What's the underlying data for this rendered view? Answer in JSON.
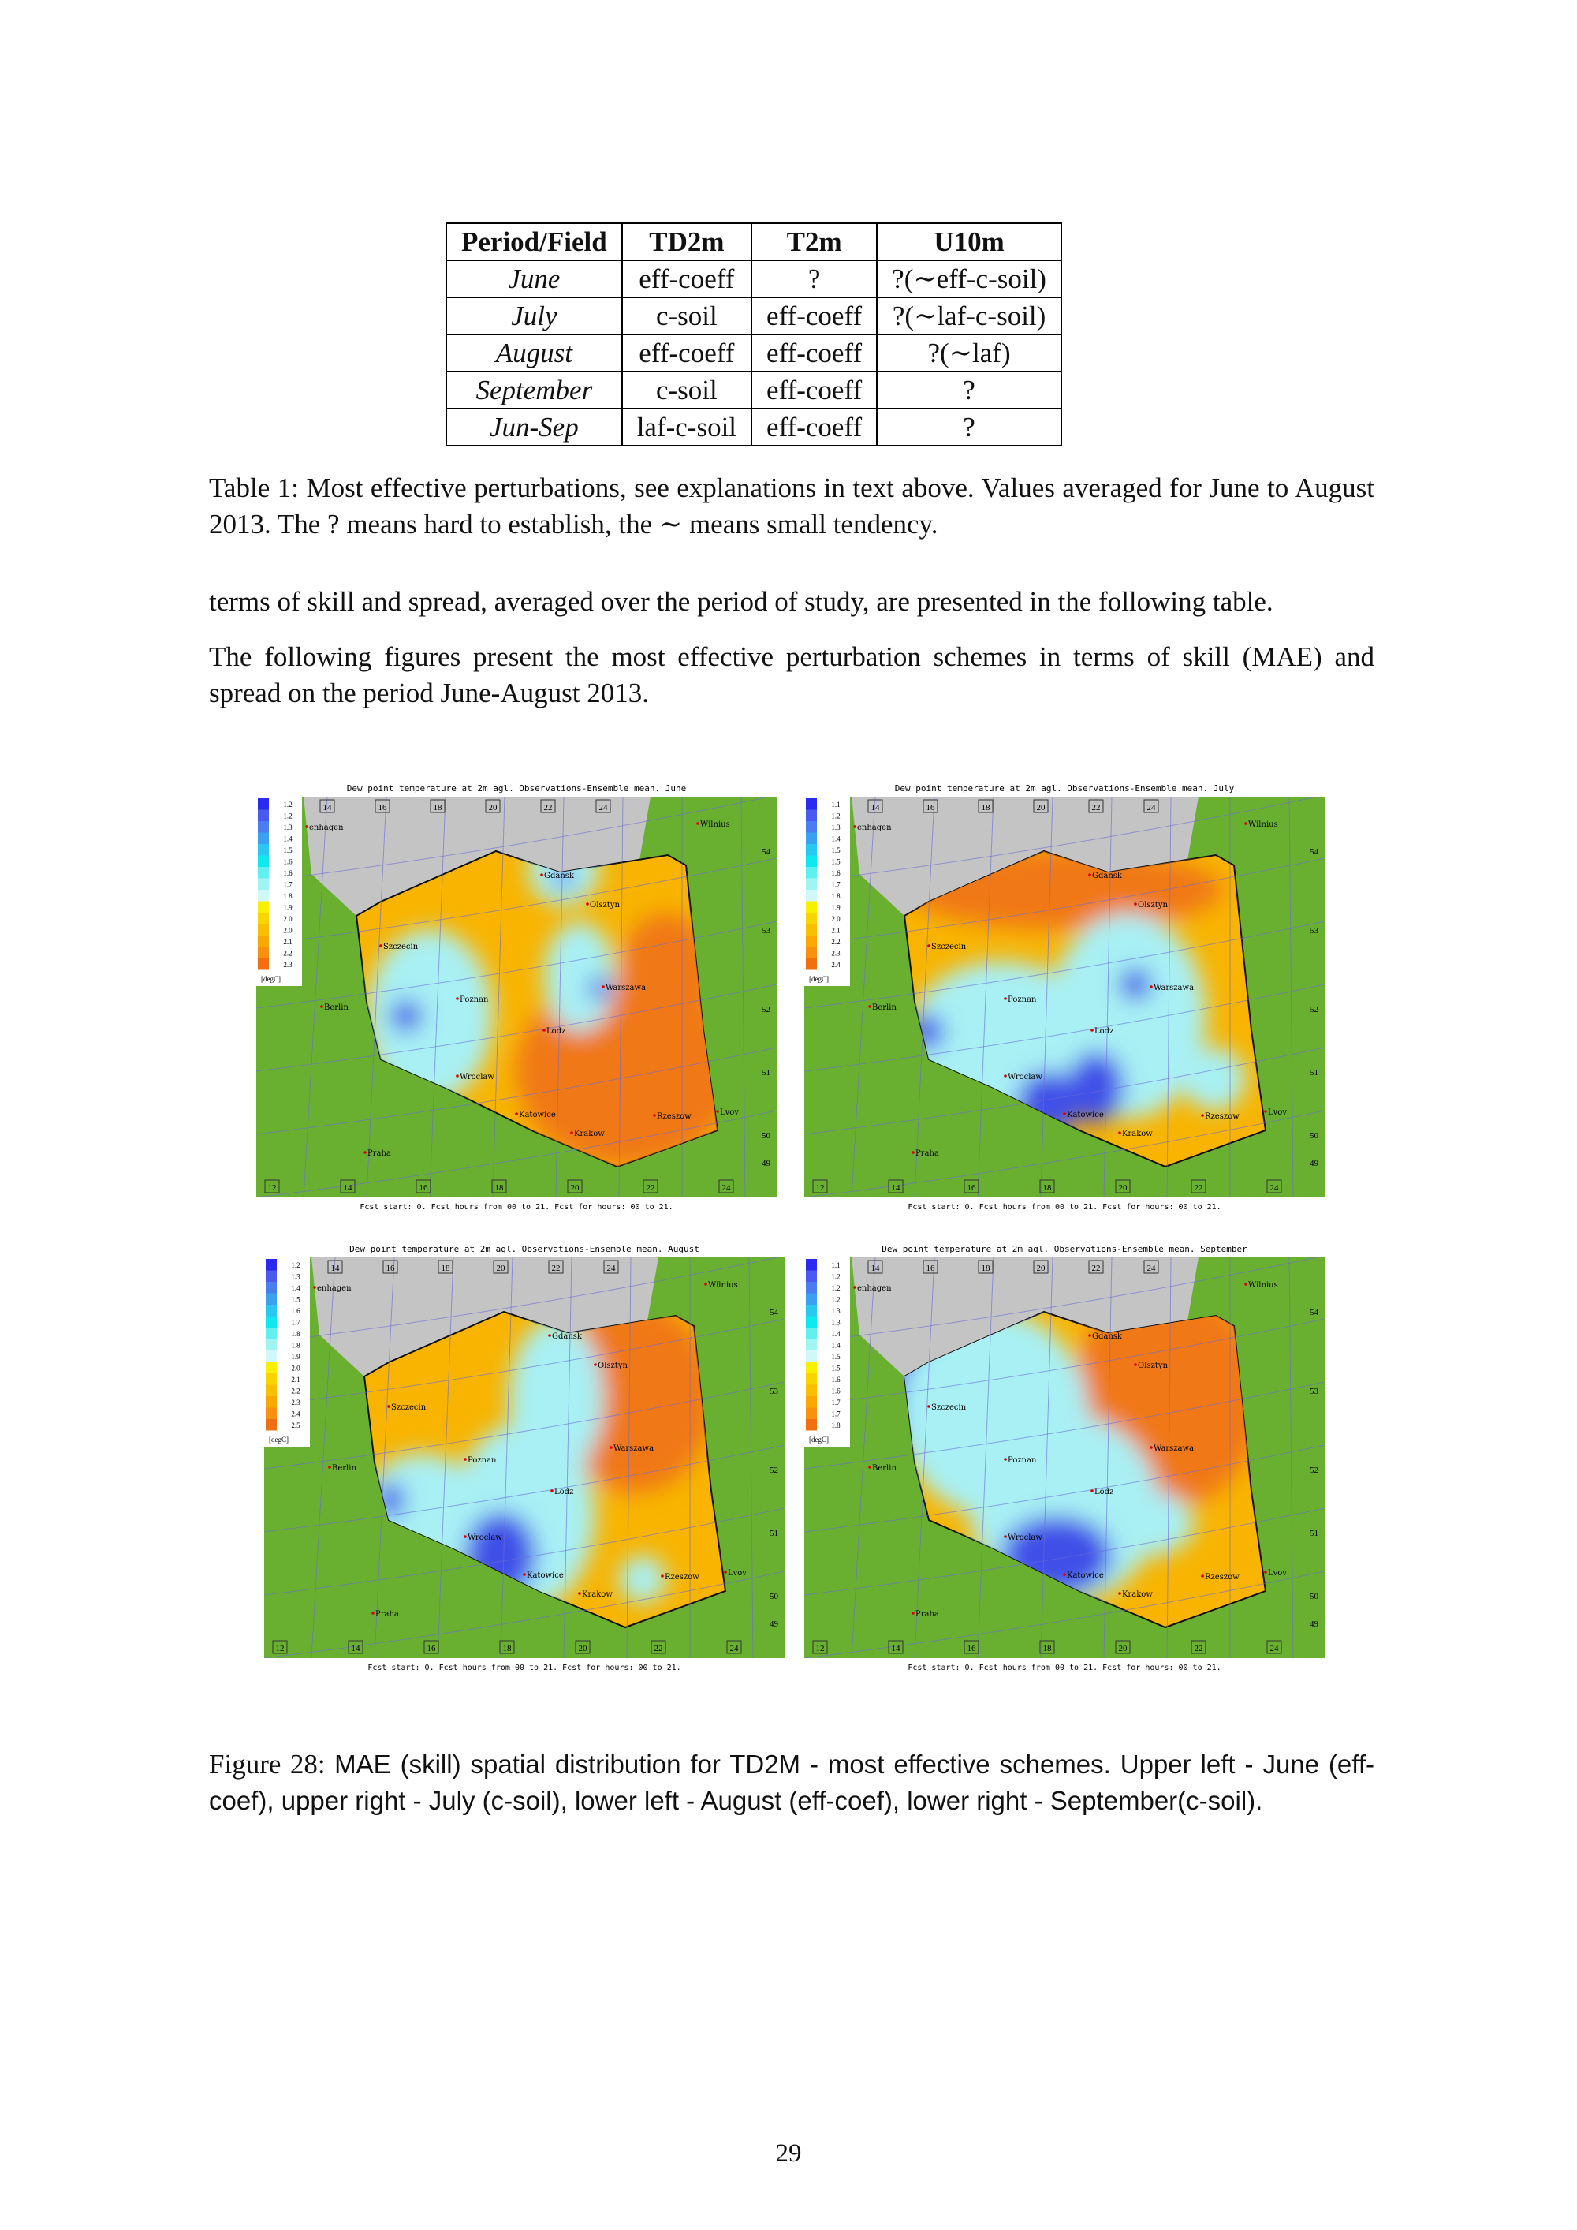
{
  "table": {
    "headers": [
      "Period/Field",
      "TD2m",
      "T2m",
      "U10m"
    ],
    "rows": [
      [
        "June",
        "eff-coeff",
        "?",
        "?(∼eff-c-soil)"
      ],
      [
        "July",
        "c-soil",
        "eff-coeff",
        "?(∼laf-c-soil)"
      ],
      [
        "August",
        "eff-coeff",
        "eff-coeff",
        "?(∼laf)"
      ],
      [
        "September",
        "c-soil",
        "eff-coeff",
        "?"
      ],
      [
        "Jun-Sep",
        "laf-c-soil",
        "eff-coeff",
        "?"
      ]
    ],
    "caption": "Table 1:  Most effective perturbations, see explanations in text above.  Values averaged for June to August 2013.  The ? means hard to establish, the ∼ means small tendency."
  },
  "paragraphs": [
    "terms of skill and spread, averaged over the period of study, are presented in the following table.",
    "The following figures present the most effective perturbation schemes in terms of skill (MAE) and spread on the period June-August 2013."
  ],
  "figure": {
    "label": "Figure 28:",
    "caption": "MAE (skill) spatial distribution for TD2M - most effective schemes. Upper left - June (eff-coef), upper right - July (c-soil), lower left - August (eff-coef), lower right - September(c-soil).",
    "legend_colors": [
      "#2a2af0",
      "#4a5af0",
      "#4a7ef0",
      "#3aa0f0",
      "#2ac8f0",
      "#10e8f0",
      "#60f0f0",
      "#a0f4f4",
      "#d0f8f8",
      "#f8f000",
      "#f8d400",
      "#f8c000",
      "#f8a800",
      "#f89010",
      "#f07010"
    ],
    "colors": {
      "land": "#6ab030",
      "sea": "#c4c4c4",
      "high": "#f07818",
      "mid": "#f8b400",
      "low": "#a8f0f4",
      "min": "#4050e8"
    },
    "unit": "[degC]",
    "footer": "Fcst start:  0. Fcst hours from 00 to 21. Fcst for hours: 00 to 21.",
    "lon_top": [
      "14",
      "16",
      "18",
      "20",
      "22",
      "24"
    ],
    "lon_bottom": [
      "12",
      "14",
      "16",
      "18",
      "20",
      "22",
      "24"
    ],
    "lat": [
      "54",
      "53",
      "52",
      "51",
      "50",
      "49"
    ],
    "cities": [
      "enhagen",
      "Wilnius",
      "Gdansk",
      "Olsztyn",
      "Szczecin",
      "Poznan",
      "Warszawa",
      "Berlin",
      "Lodz",
      "Wroclaw",
      "Katowice",
      "Krakow",
      "Rzeszow",
      "Lvov",
      "Praha"
    ],
    "maps": [
      {
        "title": "Dew point temperature at 2m agl. Observations-Ensemble mean. June",
        "legend": [
          "1.2",
          "1.2",
          "1.3",
          "1.4",
          "1.5",
          "1.6",
          "1.6",
          "1.7",
          "1.8",
          "1.9",
          "2.0",
          "2.0",
          "2.1",
          "2.2",
          "2.3"
        ]
      },
      {
        "title": "Dew point temperature at 2m agl. Observations-Ensemble mean. July",
        "legend": [
          "1.1",
          "1.2",
          "1.3",
          "1.4",
          "1.5",
          "1.5",
          "1.6",
          "1.7",
          "1.8",
          "1.9",
          "2.0",
          "2.1",
          "2.2",
          "2.3",
          "2.4"
        ]
      },
      {
        "title": "Dew point temperature at 2m agl. Observations-Ensemble mean. August",
        "legend": [
          "1.2",
          "1.3",
          "1.4",
          "1.5",
          "1.6",
          "1.7",
          "1.8",
          "1.8",
          "1.9",
          "2.0",
          "2.1",
          "2.2",
          "2.3",
          "2.4",
          "2.5"
        ]
      },
      {
        "title": "Dew point temperature at 2m agl. Observations-Ensemble mean. September",
        "legend": [
          "1.1",
          "1.2",
          "1.2",
          "1.2",
          "1.3",
          "1.3",
          "1.4",
          "1.4",
          "1.5",
          "1.5",
          "1.6",
          "1.6",
          "1.7",
          "1.7",
          "1.8"
        ]
      }
    ]
  },
  "page_number": "29"
}
